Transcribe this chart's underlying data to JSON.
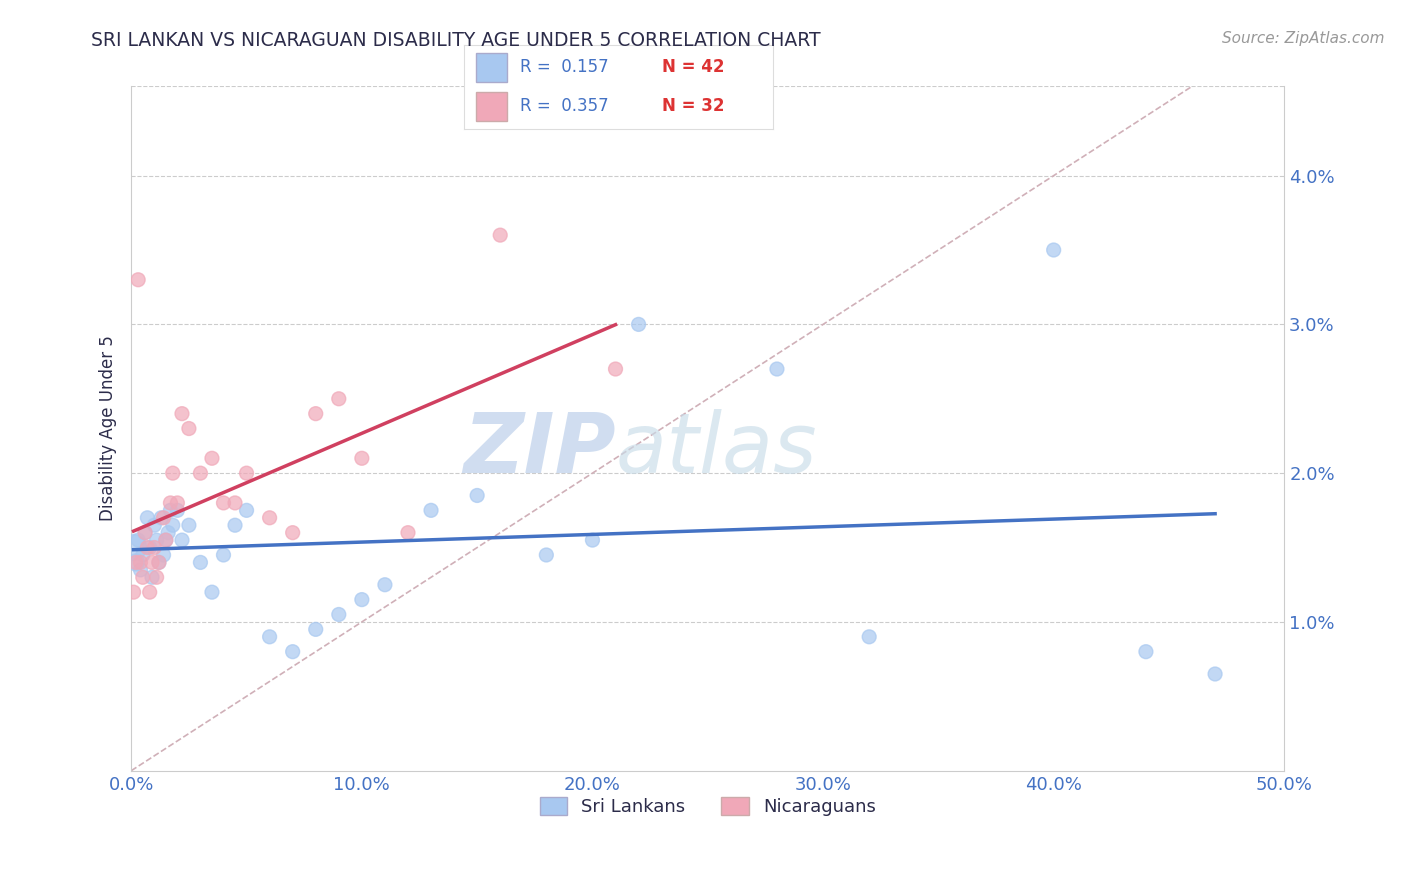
{
  "title": "SRI LANKAN VS NICARAGUAN DISABILITY AGE UNDER 5 CORRELATION CHART",
  "source": "Source: ZipAtlas.com",
  "ylabel": "Disability Age Under 5",
  "xlim": [
    0.0,
    0.5
  ],
  "ylim": [
    0.0,
    0.046
  ],
  "yticks": [
    0.01,
    0.02,
    0.03,
    0.04
  ],
  "ytick_labels": [
    "1.0%",
    "2.0%",
    "3.0%",
    "4.0%"
  ],
  "xticks": [
    0.0,
    0.1,
    0.2,
    0.3,
    0.4,
    0.5
  ],
  "xtick_labels": [
    "0.0%",
    "10.0%",
    "20.0%",
    "30.0%",
    "40.0%",
    "50.0%"
  ],
  "legend_R1": "0.157",
  "legend_N1": "42",
  "legend_R2": "0.357",
  "legend_N2": "32",
  "sri_lankan_color": "#a8c8f0",
  "nicaraguan_color": "#f0a8b8",
  "sri_lankan_line_color": "#4472c4",
  "nicaraguan_line_color": "#d04060",
  "diag_line_color": "#d0b0b8",
  "grid_color": "#cccccc",
  "title_color": "#2c2c4a",
  "axis_label_color": "#4472c4",
  "watermark_color": "#dce8f5",
  "background_color": "#ffffff",
  "sri_lankans_x": [
    0.001,
    0.002,
    0.003,
    0.004,
    0.005,
    0.006,
    0.007,
    0.008,
    0.009,
    0.01,
    0.011,
    0.012,
    0.013,
    0.014,
    0.015,
    0.016,
    0.017,
    0.018,
    0.02,
    0.022,
    0.025,
    0.03,
    0.035,
    0.04,
    0.045,
    0.05,
    0.06,
    0.07,
    0.08,
    0.09,
    0.1,
    0.11,
    0.13,
    0.15,
    0.18,
    0.2,
    0.22,
    0.28,
    0.32,
    0.4,
    0.44,
    0.47
  ],
  "sri_lankans_y": [
    0.015,
    0.014,
    0.0155,
    0.0135,
    0.0145,
    0.016,
    0.017,
    0.015,
    0.013,
    0.0165,
    0.0155,
    0.014,
    0.017,
    0.0145,
    0.0155,
    0.016,
    0.0175,
    0.0165,
    0.0175,
    0.0155,
    0.0165,
    0.014,
    0.012,
    0.0145,
    0.0165,
    0.0175,
    0.009,
    0.008,
    0.0095,
    0.0105,
    0.0115,
    0.0125,
    0.0175,
    0.0185,
    0.0145,
    0.0155,
    0.03,
    0.027,
    0.009,
    0.035,
    0.008,
    0.0065
  ],
  "sri_lankans_size": [
    350,
    150,
    100,
    100,
    100,
    100,
    100,
    100,
    100,
    100,
    100,
    100,
    100,
    100,
    100,
    100,
    100,
    100,
    100,
    100,
    100,
    100,
    100,
    100,
    100,
    100,
    100,
    100,
    100,
    100,
    100,
    100,
    100,
    100,
    100,
    100,
    100,
    100,
    100,
    100,
    100,
    100
  ],
  "nicaraguans_x": [
    0.001,
    0.002,
    0.003,
    0.004,
    0.005,
    0.006,
    0.007,
    0.008,
    0.009,
    0.01,
    0.011,
    0.012,
    0.014,
    0.015,
    0.017,
    0.018,
    0.02,
    0.022,
    0.025,
    0.03,
    0.035,
    0.04,
    0.045,
    0.05,
    0.06,
    0.07,
    0.08,
    0.09,
    0.1,
    0.12,
    0.16,
    0.21
  ],
  "nicaraguans_y": [
    0.012,
    0.014,
    0.033,
    0.014,
    0.013,
    0.016,
    0.015,
    0.012,
    0.014,
    0.015,
    0.013,
    0.014,
    0.017,
    0.0155,
    0.018,
    0.02,
    0.018,
    0.024,
    0.023,
    0.02,
    0.021,
    0.018,
    0.018,
    0.02,
    0.017,
    0.016,
    0.024,
    0.025,
    0.021,
    0.016,
    0.036,
    0.027
  ],
  "nicaraguans_size": [
    100,
    100,
    100,
    100,
    100,
    100,
    100,
    100,
    100,
    100,
    100,
    100,
    100,
    100,
    100,
    100,
    100,
    100,
    100,
    100,
    100,
    100,
    100,
    100,
    100,
    100,
    100,
    100,
    100,
    100,
    100,
    100
  ],
  "diag_line_x": [
    0.0,
    0.46
  ],
  "diag_line_y": [
    0.0,
    0.046
  ]
}
